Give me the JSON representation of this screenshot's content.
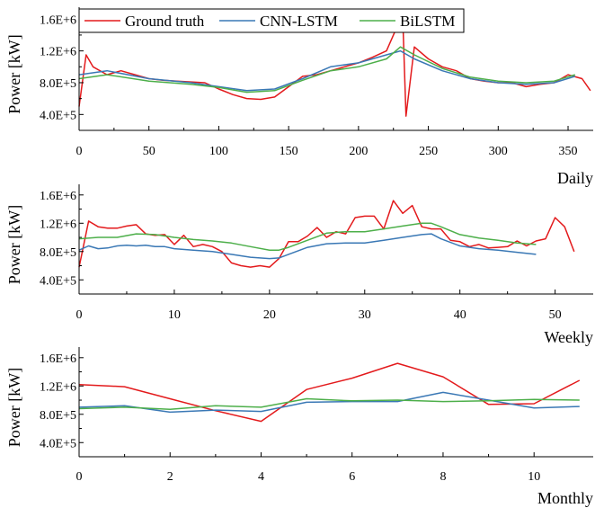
{
  "legend": {
    "entries": [
      {
        "label": "Ground truth",
        "color": "#e31a1c"
      },
      {
        "label": "CNN-LSTM",
        "color": "#3a78b5"
      },
      {
        "label": "BiLSTM",
        "color": "#4daf4a"
      }
    ]
  },
  "chart_data": [
    {
      "type": "line",
      "title": "Daily",
      "xlabel": "",
      "ylabel": "Power [kW]",
      "xlim": [
        0,
        368
      ],
      "ylim": [
        200000,
        1750000
      ],
      "xticks": [
        0,
        50,
        100,
        150,
        200,
        250,
        300,
        350
      ],
      "yticks": [
        400000,
        800000,
        1200000,
        1600000
      ],
      "ytick_labels": [
        "4.0E+5",
        "8.0E+5",
        "1.2E+6",
        "1.6E+6"
      ],
      "series": [
        {
          "name": "Ground truth",
          "x": [
            0,
            5,
            10,
            20,
            30,
            40,
            50,
            60,
            70,
            80,
            90,
            100,
            110,
            120,
            130,
            140,
            150,
            160,
            170,
            180,
            190,
            200,
            210,
            220,
            228,
            232,
            234,
            240,
            250,
            260,
            270,
            280,
            290,
            300,
            310,
            320,
            330,
            340,
            350,
            360,
            366
          ],
          "values": [
            500000,
            1150000,
            1000000,
            900000,
            950000,
            900000,
            850000,
            830000,
            820000,
            810000,
            800000,
            720000,
            650000,
            600000,
            590000,
            620000,
            750000,
            880000,
            900000,
            950000,
            1000000,
            1050000,
            1120000,
            1200000,
            1520000,
            1450000,
            380000,
            1250000,
            1100000,
            1000000,
            950000,
            850000,
            820000,
            800000,
            800000,
            750000,
            780000,
            800000,
            900000,
            850000,
            700000
          ]
        },
        {
          "name": "CNN-LSTM",
          "x": [
            0,
            20,
            50,
            80,
            100,
            120,
            140,
            160,
            180,
            200,
            220,
            230,
            240,
            260,
            280,
            300,
            320,
            340,
            355
          ],
          "values": [
            900000,
            950000,
            850000,
            800000,
            750000,
            700000,
            720000,
            850000,
            1000000,
            1050000,
            1150000,
            1200000,
            1100000,
            950000,
            850000,
            800000,
            780000,
            800000,
            880000
          ]
        },
        {
          "name": "BiLSTM",
          "x": [
            0,
            20,
            50,
            80,
            100,
            120,
            140,
            160,
            180,
            200,
            220,
            230,
            240,
            260,
            280,
            300,
            320,
            340,
            355
          ],
          "values": [
            850000,
            900000,
            820000,
            780000,
            740000,
            680000,
            700000,
            830000,
            950000,
            1000000,
            1100000,
            1250000,
            1150000,
            980000,
            870000,
            820000,
            800000,
            820000,
            900000
          ]
        }
      ]
    },
    {
      "type": "line",
      "title": "Weekly",
      "xlabel": "",
      "ylabel": "Power [kW]",
      "xlim": [
        0,
        54
      ],
      "ylim": [
        200000,
        1750000
      ],
      "xticks": [
        0,
        10,
        20,
        30,
        40,
        50
      ],
      "yticks": [
        400000,
        800000,
        1200000,
        1600000
      ],
      "ytick_labels": [
        "4.0E+5",
        "8.0E+5",
        "1.2E+6",
        "1.6E+6"
      ],
      "series": [
        {
          "name": "Ground truth",
          "x": [
            0,
            1,
            2,
            3,
            4,
            5,
            6,
            7,
            8,
            9,
            10,
            11,
            12,
            13,
            14,
            15,
            16,
            17,
            18,
            19,
            20,
            21,
            22,
            23,
            24,
            25,
            26,
            27,
            28,
            29,
            30,
            31,
            32,
            33,
            34,
            35,
            36,
            37,
            38,
            39,
            40,
            41,
            42,
            43,
            44,
            45,
            46,
            47,
            48,
            49,
            50,
            51,
            52
          ],
          "values": [
            580000,
            1230000,
            1150000,
            1130000,
            1130000,
            1160000,
            1180000,
            1050000,
            1030000,
            1040000,
            900000,
            1030000,
            870000,
            900000,
            870000,
            800000,
            640000,
            600000,
            580000,
            600000,
            580000,
            700000,
            940000,
            940000,
            1020000,
            1140000,
            1000000,
            1080000,
            1050000,
            1280000,
            1300000,
            1300000,
            1120000,
            1520000,
            1340000,
            1450000,
            1150000,
            1120000,
            1120000,
            960000,
            940000,
            870000,
            900000,
            850000,
            860000,
            870000,
            950000,
            880000,
            950000,
            980000,
            1280000,
            1150000,
            800000
          ]
        },
        {
          "name": "CNN-LSTM",
          "x": [
            0,
            1,
            2,
            3,
            4,
            5,
            6,
            7,
            8,
            9,
            10,
            12,
            14,
            16,
            18,
            20,
            21,
            22,
            24,
            26,
            28,
            30,
            32,
            34,
            36,
            37,
            38,
            40,
            42,
            44,
            46,
            48
          ],
          "values": [
            820000,
            880000,
            840000,
            850000,
            880000,
            890000,
            880000,
            890000,
            870000,
            870000,
            840000,
            820000,
            800000,
            760000,
            720000,
            700000,
            710000,
            760000,
            860000,
            910000,
            920000,
            920000,
            960000,
            1000000,
            1040000,
            1050000,
            980000,
            880000,
            840000,
            820000,
            790000,
            760000
          ]
        },
        {
          "name": "BiLSTM",
          "x": [
            0,
            2,
            4,
            6,
            8,
            10,
            12,
            14,
            16,
            18,
            20,
            21,
            22,
            24,
            26,
            28,
            30,
            32,
            34,
            36,
            37,
            38,
            40,
            42,
            44,
            46,
            48
          ],
          "values": [
            980000,
            1000000,
            1000000,
            1050000,
            1040000,
            1000000,
            970000,
            950000,
            920000,
            870000,
            820000,
            820000,
            860000,
            960000,
            1060000,
            1080000,
            1080000,
            1120000,
            1160000,
            1200000,
            1200000,
            1150000,
            1040000,
            990000,
            960000,
            920000,
            900000
          ]
        }
      ]
    },
    {
      "type": "line",
      "title": "Monthly",
      "xlabel": "",
      "ylabel": "Power [kW]",
      "xlim": [
        0,
        11.3
      ],
      "ylim": [
        200000,
        1750000
      ],
      "xticks": [
        0,
        2,
        4,
        6,
        8,
        10
      ],
      "yticks": [
        400000,
        800000,
        1200000,
        1600000
      ],
      "ytick_labels": [
        "4.0E+5",
        "8.0E+5",
        "1.2E+6",
        "1.6E+6"
      ],
      "series": [
        {
          "name": "Ground truth",
          "x": [
            0,
            1,
            2,
            3,
            4,
            5,
            6,
            7,
            8,
            9,
            10,
            11
          ],
          "values": [
            1220000,
            1190000,
            1020000,
            850000,
            700000,
            1150000,
            1310000,
            1520000,
            1330000,
            940000,
            950000,
            1280000
          ]
        },
        {
          "name": "CNN-LSTM",
          "x": [
            0,
            1,
            2,
            3,
            4,
            5,
            6,
            7,
            8,
            9,
            10,
            11
          ],
          "values": [
            900000,
            920000,
            830000,
            860000,
            840000,
            970000,
            980000,
            980000,
            1110000,
            1000000,
            890000,
            910000
          ]
        },
        {
          "name": "BiLSTM",
          "x": [
            0,
            1,
            2,
            3,
            4,
            5,
            6,
            7,
            8,
            9,
            10,
            11
          ],
          "values": [
            880000,
            900000,
            870000,
            920000,
            900000,
            1020000,
            990000,
            1000000,
            980000,
            990000,
            1010000,
            1000000
          ]
        }
      ]
    }
  ]
}
